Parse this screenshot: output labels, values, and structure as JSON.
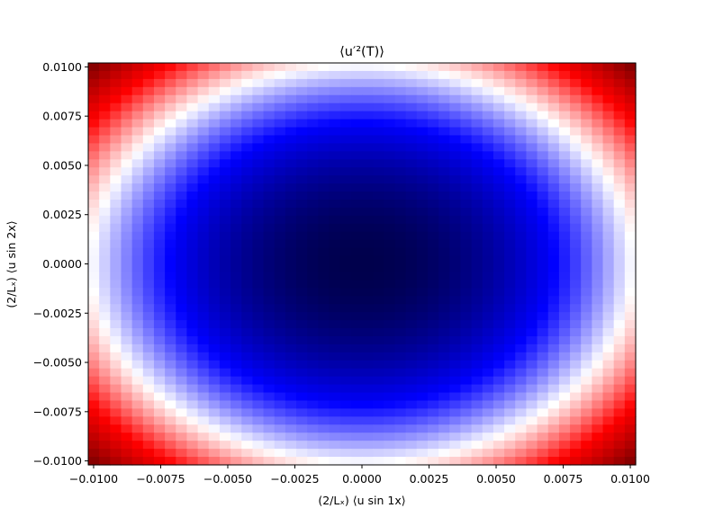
{
  "chart_data": {
    "type": "heatmap",
    "title": "⟨u′²(T)⟩",
    "xlabel": "(2/Lₓ) ⟨u sin 1x⟩",
    "ylabel": "(2/Lₓ) ⟨u sin 2x⟩",
    "xlim": [
      -0.0102,
      0.0102
    ],
    "ylim": [
      -0.0102,
      0.0102
    ],
    "grid": false,
    "colormap": "seismic",
    "colormap_stops": [
      "#00004c",
      "#0000ff",
      "#ffffff",
      "#ff0000",
      "#7f0000"
    ],
    "field": "radial-paraboloid minimum at center",
    "field_center": [
      0.0,
      0.0
    ],
    "field_radii": [
      0.0102,
      0.0102
    ],
    "field_range": [
      0.0,
      1.96
    ],
    "color_range": [
      0.0,
      1.96
    ],
    "grid_cells": [
      50,
      50
    ],
    "xticks": [
      -0.01,
      -0.0075,
      -0.005,
      -0.0025,
      0.0,
      0.0025,
      0.005,
      0.0075,
      0.01
    ],
    "yticks": [
      -0.01,
      -0.0075,
      -0.005,
      -0.0025,
      0.0,
      0.0025,
      0.005,
      0.0075,
      0.01
    ],
    "xtick_labels": [
      "−0.0100",
      "−0.0075",
      "−0.0050",
      "−0.0025",
      "0.0000",
      "0.0025",
      "0.0050",
      "0.0075",
      "0.0100"
    ],
    "ytick_labels": [
      "−0.0100",
      "−0.0075",
      "−0.0050",
      "−0.0025",
      "0.0000",
      "0.0025",
      "0.0050",
      "0.0075",
      "0.0100"
    ]
  }
}
